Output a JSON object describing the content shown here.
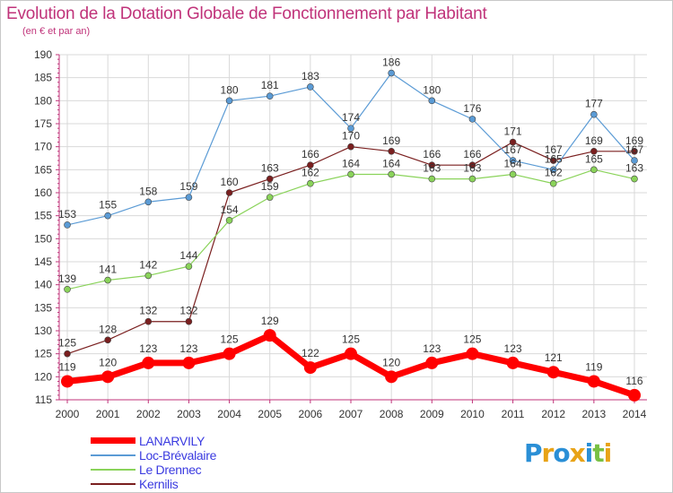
{
  "header": {
    "title": "Evolution de la Dotation Globale de Fonctionnement par Habitant",
    "subtitle": "(en € et par an)"
  },
  "colors": {
    "title": "#c0337a",
    "axis": "#c0337a",
    "grid": "#d9d9d9",
    "legend_text": "#3a3ae0"
  },
  "logo": {
    "letters": [
      "P",
      "r",
      "o",
      "x",
      "i",
      "t",
      "i"
    ],
    "colors": [
      "#2a8fd6",
      "#e8a317",
      "#2a8fd6",
      "#e8a317",
      "#2a8fd6",
      "#78c043",
      "#e8a317"
    ]
  },
  "chart_data": {
    "type": "line",
    "title": "Evolution de la Dotation Globale de Fonctionnement par Habitant",
    "subtitle": "(en € et par an)",
    "xlabel": "",
    "ylabel": "",
    "x": [
      "2000",
      "2001",
      "2002",
      "2003",
      "2004",
      "2005",
      "2006",
      "2007",
      "2008",
      "2009",
      "2010",
      "2011",
      "2012",
      "2013",
      "2014"
    ],
    "ylim": [
      115,
      190
    ],
    "yticks": [
      115,
      120,
      125,
      130,
      135,
      140,
      145,
      150,
      155,
      160,
      165,
      170,
      175,
      180,
      185,
      190
    ],
    "grid": true,
    "legend_position": "bottom-left",
    "series": [
      {
        "name": "LANARVILY",
        "color": "#ff0000",
        "line_width": 7,
        "marker_radius": 7,
        "label_offset": -12,
        "values": [
          119,
          120,
          123,
          123,
          125,
          129,
          122,
          125,
          120,
          123,
          125,
          123,
          121,
          119,
          116
        ]
      },
      {
        "name": "Loc-Brévalaire",
        "color": "#5b9bd5",
        "line_width": 1.2,
        "marker_radius": 3.5,
        "label_offset": -8,
        "values": [
          153,
          155,
          158,
          159,
          180,
          181,
          183,
          174,
          186,
          180,
          176,
          167,
          165,
          177,
          167
        ]
      },
      {
        "name": "Le Drennec",
        "color": "#8ad35a",
        "line_width": 1.2,
        "marker_radius": 3.5,
        "label_offset": -8,
        "values": [
          139,
          141,
          142,
          144,
          154,
          159,
          162,
          164,
          164,
          163,
          163,
          164,
          162,
          165,
          163
        ]
      },
      {
        "name": "Kernilis",
        "color": "#7a1f1f",
        "line_width": 1.2,
        "marker_radius": 3.5,
        "label_offset": -8,
        "values": [
          125,
          128,
          132,
          132,
          160,
          163,
          166,
          170,
          169,
          166,
          166,
          171,
          167,
          169,
          169
        ]
      }
    ]
  }
}
